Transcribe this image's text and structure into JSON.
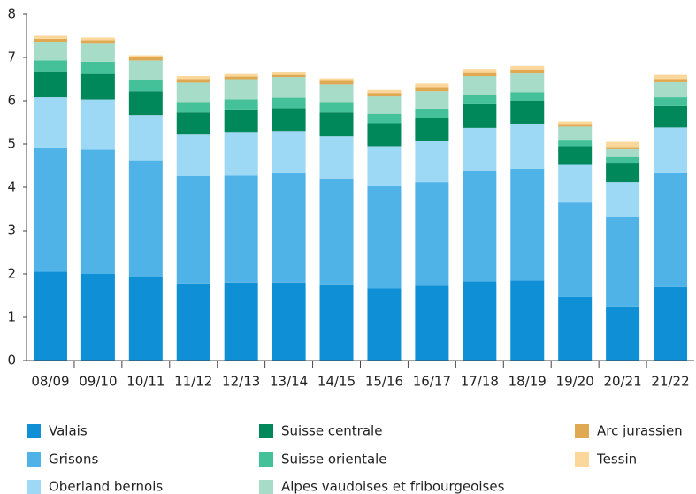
{
  "chart_data": {
    "type": "stacked_bar",
    "categories": [
      "08/09",
      "09/10",
      "10/11",
      "11/12",
      "12/13",
      "13/14",
      "14/15",
      "15/16",
      "16/17",
      "17/18",
      "18/19",
      "19/20",
      "20/21",
      "21/22"
    ],
    "series": [
      {
        "name": "Valais",
        "color": "#0e8fd6",
        "values": [
          2.05,
          2.0,
          1.92,
          1.78,
          1.8,
          1.8,
          1.76,
          1.67,
          1.73,
          1.83,
          1.85,
          1.47,
          1.25,
          1.7
        ]
      },
      {
        "name": "Grisons",
        "color": "#4fb3e8",
        "values": [
          2.87,
          2.87,
          2.7,
          2.49,
          2.48,
          2.53,
          2.44,
          2.35,
          2.39,
          2.54,
          2.58,
          2.18,
          2.07,
          2.63
        ]
      },
      {
        "name": "Oberland bernois",
        "color": "#9dd8f5",
        "values": [
          1.16,
          1.16,
          1.05,
          0.95,
          1.0,
          0.97,
          0.98,
          0.93,
          0.95,
          1.0,
          1.04,
          0.87,
          0.8,
          1.05
        ]
      },
      {
        "name": "Suisse centrale",
        "color": "#00875a",
        "values": [
          0.6,
          0.59,
          0.55,
          0.51,
          0.52,
          0.53,
          0.55,
          0.53,
          0.53,
          0.55,
          0.53,
          0.43,
          0.43,
          0.5
        ]
      },
      {
        "name": "Suisse orientale",
        "color": "#45c19a",
        "values": [
          0.25,
          0.28,
          0.25,
          0.24,
          0.23,
          0.24,
          0.24,
          0.22,
          0.22,
          0.21,
          0.2,
          0.15,
          0.15,
          0.2
        ]
      },
      {
        "name": "Alpes vaudoises et fribourgeoises",
        "color": "#a6dcc8",
        "values": [
          0.42,
          0.42,
          0.46,
          0.45,
          0.47,
          0.48,
          0.41,
          0.4,
          0.4,
          0.44,
          0.43,
          0.3,
          0.18,
          0.35
        ]
      },
      {
        "name": "Arc jurassien",
        "color": "#e0a850",
        "values": [
          0.08,
          0.08,
          0.07,
          0.08,
          0.06,
          0.05,
          0.08,
          0.08,
          0.08,
          0.07,
          0.09,
          0.06,
          0.05,
          0.07
        ]
      },
      {
        "name": "Tessin",
        "color": "#fbd79b",
        "values": [
          0.07,
          0.06,
          0.05,
          0.07,
          0.06,
          0.06,
          0.06,
          0.07,
          0.1,
          0.09,
          0.08,
          0.06,
          0.12,
          0.1
        ]
      }
    ],
    "ylim": [
      0,
      8
    ],
    "yticks": [
      0,
      1,
      2,
      3,
      4,
      5,
      6,
      7,
      8
    ],
    "grid": false
  }
}
